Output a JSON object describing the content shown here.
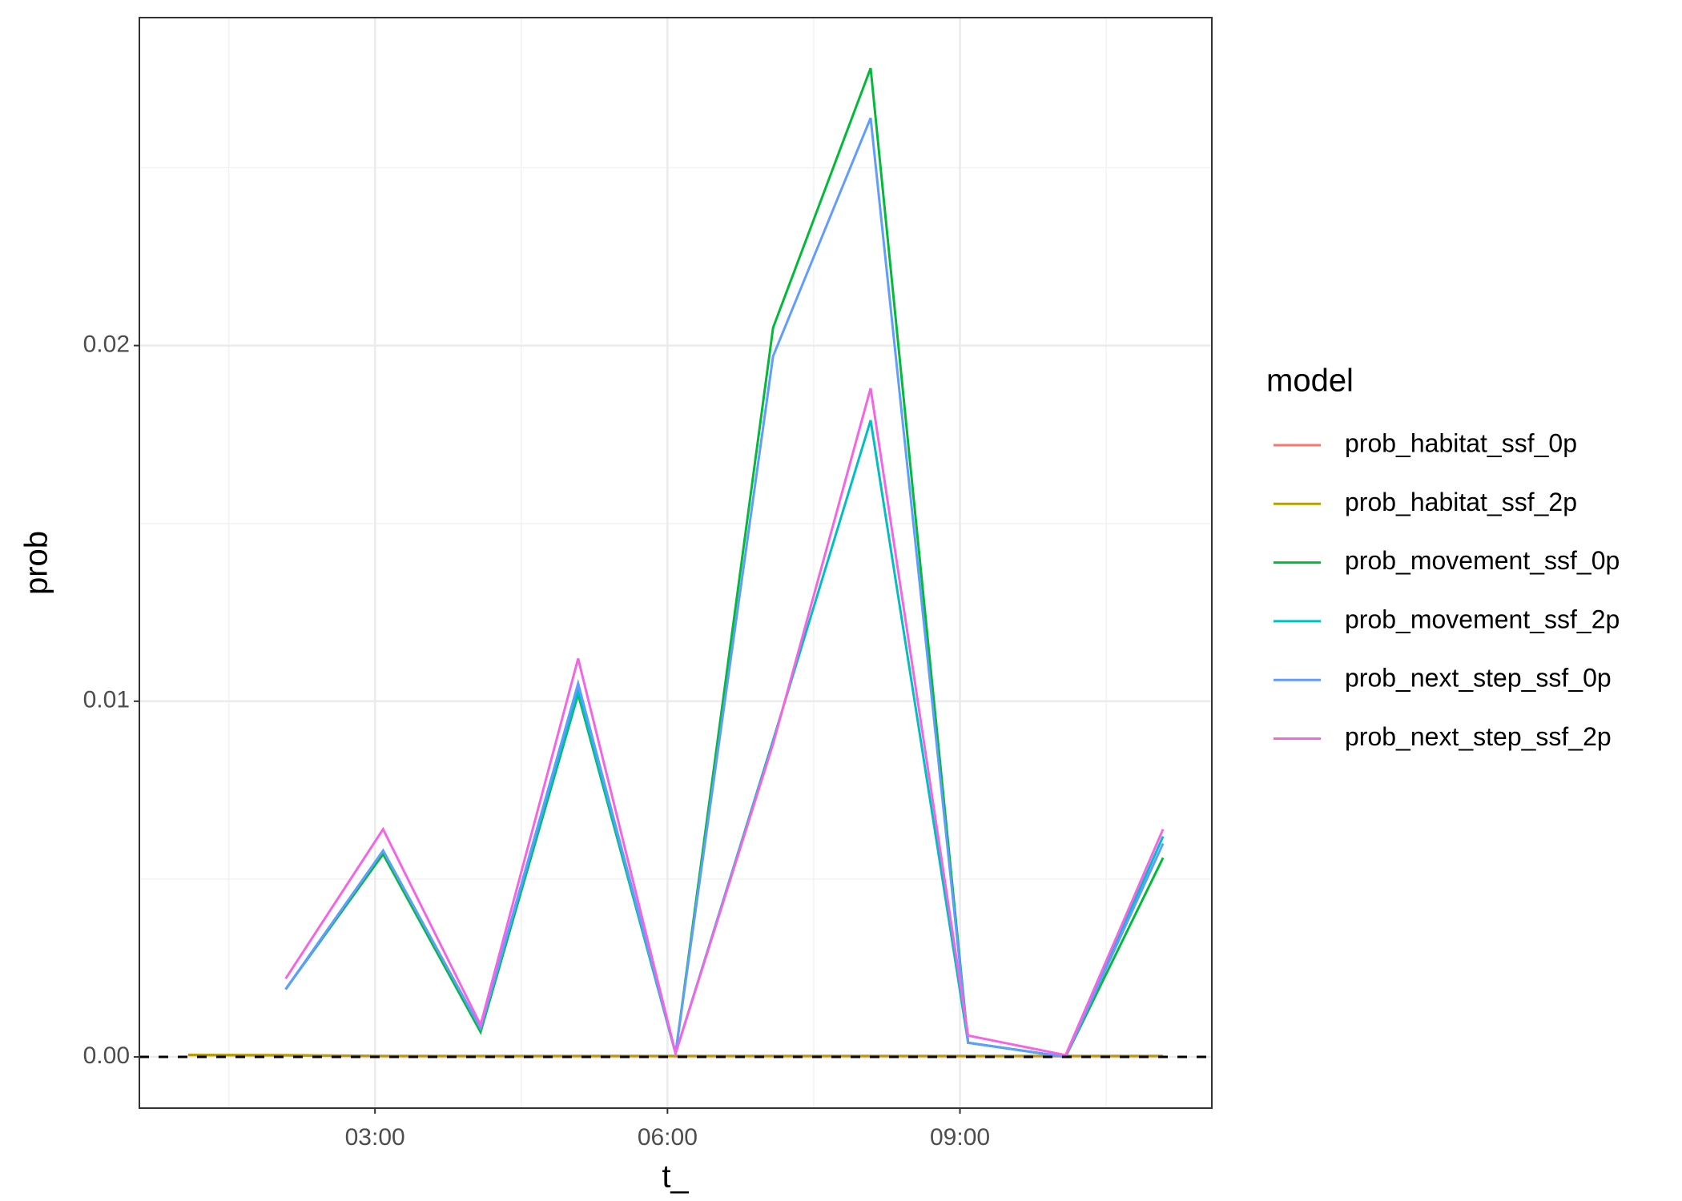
{
  "chart_data": {
    "type": "line",
    "x_label": "t_",
    "y_label": "prob",
    "legend_title": "model",
    "legend": "right",
    "grid": true,
    "hline": 0,
    "x": [
      "01:05",
      "02:05",
      "03:05",
      "04:05",
      "05:05",
      "06:05",
      "07:05",
      "08:05",
      "09:05",
      "10:05",
      "11:05"
    ],
    "xlim": [
      "00:35",
      "11:35"
    ],
    "xticks": [
      "03:00",
      "06:00",
      "09:00"
    ],
    "x_minor_grid": [
      "01:30",
      "04:30",
      "07:30",
      "10:30"
    ],
    "ylim": [
      -0.00144,
      0.02922
    ],
    "yticks": [
      {
        "value": 0,
        "label": "0.00"
      },
      {
        "value": 0.01,
        "label": "0.01"
      },
      {
        "value": 0.02,
        "label": "0.02"
      }
    ],
    "y_minor_grid": [
      0.005,
      0.015,
      0.025
    ],
    "series": [
      {
        "name": "prob_habitat_ssf_0p",
        "color": "#F8766D",
        "values": [
          5e-05,
          4e-05,
          2e-05,
          2e-05,
          2e-05,
          2e-05,
          2e-05,
          2e-05,
          2e-05,
          2e-05,
          2e-05
        ]
      },
      {
        "name": "prob_habitat_ssf_2p",
        "color": "#B79F00",
        "values": [
          6e-05,
          5e-05,
          3e-05,
          3e-05,
          3e-05,
          3e-05,
          3e-05,
          3e-05,
          3e-05,
          3e-05,
          3e-05
        ]
      },
      {
        "name": "prob_movement_ssf_0p",
        "color": "#00BA38",
        "values": [
          null,
          0.0019,
          0.0057,
          0.0007,
          0.0102,
          0.0001,
          0.0205,
          0.0278,
          0.0004,
          0.0,
          0.0056
        ]
      },
      {
        "name": "prob_movement_ssf_2p",
        "color": "#00BFC4",
        "values": [
          null,
          0.0019,
          0.0058,
          0.0008,
          0.0103,
          0.0001,
          0.0089,
          0.0179,
          0.0004,
          0.0,
          0.0062
        ]
      },
      {
        "name": "prob_next_step_ssf_0p",
        "color": "#619CFF",
        "values": [
          null,
          0.0019,
          0.0058,
          0.0008,
          0.0105,
          0.0001,
          0.0197,
          0.0264,
          0.0004,
          0.0,
          0.006
        ]
      },
      {
        "name": "prob_next_step_ssf_2p",
        "color": "#F564E3",
        "values": [
          null,
          0.0022,
          0.0064,
          0.0009,
          0.0112,
          0.0001,
          0.0088,
          0.0188,
          0.0006,
          5e-05,
          0.0064
        ]
      }
    ]
  }
}
